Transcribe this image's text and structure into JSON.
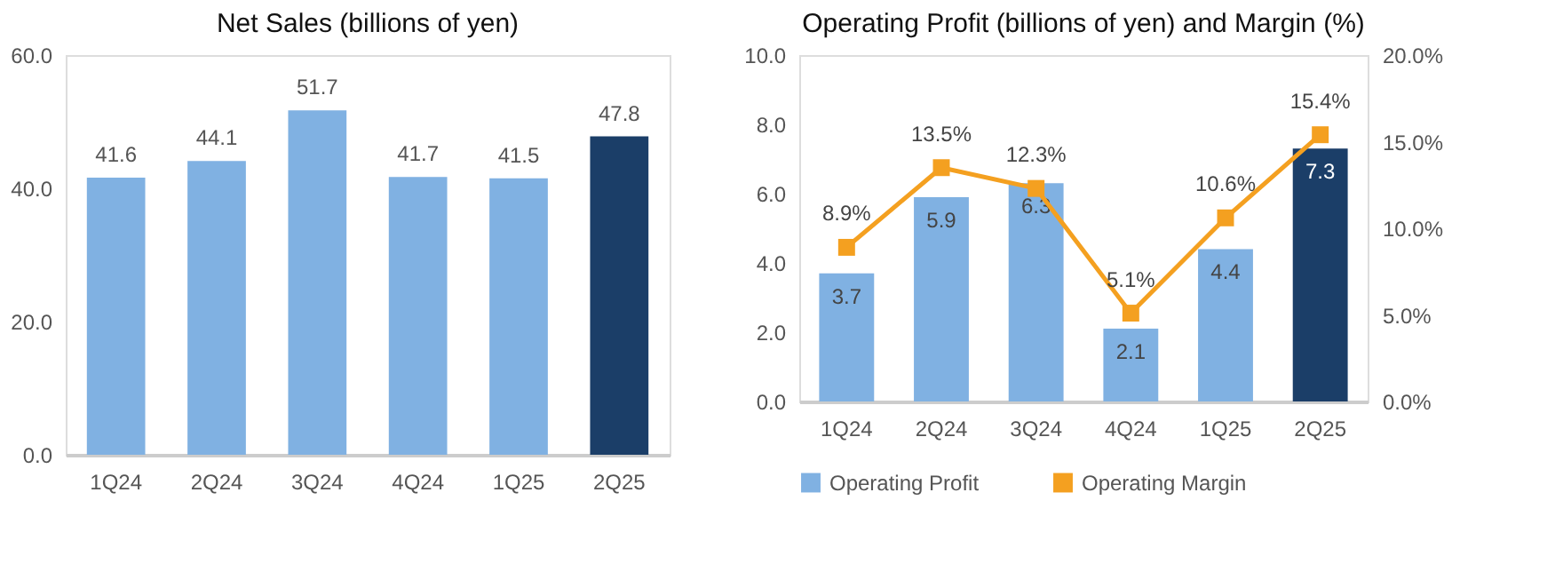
{
  "chart_data": [
    {
      "type": "bar",
      "title": "Net Sales (billions of yen)",
      "categories": [
        "1Q24",
        "2Q24",
        "3Q24",
        "4Q24",
        "1Q25",
        "2Q25"
      ],
      "series": [
        {
          "colors": [
            "#80b1e2",
            "#80b1e2",
            "#80b1e2",
            "#80b1e2",
            "#80b1e2",
            "#1b3e68"
          ],
          "values": [
            41.6,
            44.1,
            51.7,
            41.7,
            41.5,
            47.8
          ]
        }
      ],
      "ylim": [
        0,
        60
      ],
      "yticks": [
        {
          "value": 0,
          "label": "0.0"
        },
        {
          "value": 20,
          "label": "20.0"
        },
        {
          "value": 40,
          "label": "40.0"
        },
        {
          "value": 60,
          "label": "60.0"
        }
      ],
      "data_labels": true,
      "grid": false,
      "legend": false
    },
    {
      "type": "bar",
      "title": "Operating Profit (billions of yen) and Margin (%)",
      "categories": [
        "1Q24",
        "2Q24",
        "3Q24",
        "4Q24",
        "1Q25",
        "2Q25"
      ],
      "series": [
        {
          "name": "Operating Profit",
          "colors": [
            "#80b1e2",
            "#80b1e2",
            "#80b1e2",
            "#80b1e2",
            "#80b1e2",
            "#1b3e68"
          ],
          "values": [
            3.7,
            5.9,
            6.3,
            2.1,
            4.4,
            7.3
          ]
        },
        {
          "name": "Operating Margin",
          "type": "line",
          "axis": "y2",
          "color": "#f4a020",
          "marker": "square",
          "values": [
            8.9,
            13.5,
            12.3,
            5.1,
            10.6,
            15.4
          ],
          "value_labels": [
            "8.9%",
            "13.5%",
            "12.3%",
            "5.1%",
            "10.6%",
            "15.4%"
          ]
        }
      ],
      "ylim": [
        0,
        10
      ],
      "yticks": [
        {
          "value": 0,
          "label": "0.0"
        },
        {
          "value": 2,
          "label": "2.0"
        },
        {
          "value": 4,
          "label": "4.0"
        },
        {
          "value": 6,
          "label": "6.0"
        },
        {
          "value": 8,
          "label": "8.0"
        },
        {
          "value": 10,
          "label": "10.0"
        }
      ],
      "y2lim": [
        0,
        20
      ],
      "y2ticks": [
        {
          "value": 0,
          "label": "0.0%"
        },
        {
          "value": 5,
          "label": "5.0%"
        },
        {
          "value": 10,
          "label": "10.0%"
        },
        {
          "value": 15,
          "label": "15.0%"
        },
        {
          "value": 20,
          "label": "20.0%"
        }
      ],
      "data_labels": true,
      "grid": false,
      "legend": "bottom"
    }
  ]
}
